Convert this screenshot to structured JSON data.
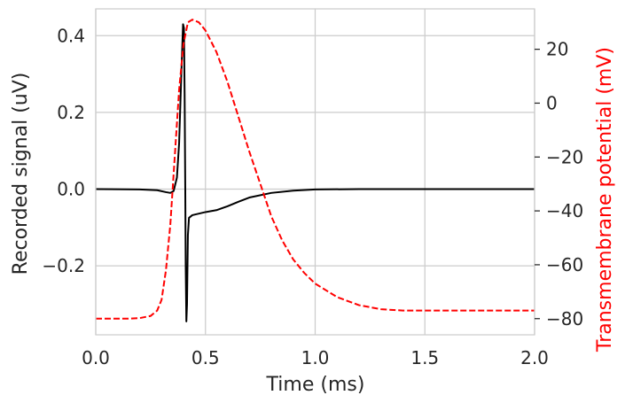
{
  "chart_data": {
    "type": "line",
    "xlabel": "Time (ms)",
    "ylabel_left": "Recorded signal (uV)",
    "ylabel_right": "Transmembrane potential (mV)",
    "xlim": [
      0.0,
      2.0
    ],
    "ylim_left": [
      -0.38,
      0.47
    ],
    "ylim_right": [
      -86,
      35
    ],
    "grid": true,
    "x_ticks": [
      "0.0",
      "0.5",
      "1.0",
      "1.5",
      "2.0"
    ],
    "left_ticks": [
      "−0.2",
      "0.0",
      "0.2",
      "0.4"
    ],
    "right_ticks": [
      "−80",
      "−60",
      "−40",
      "−20",
      "0",
      "20"
    ],
    "series": [
      {
        "axis": "left",
        "color": "#000000",
        "style": "solid",
        "points": [
          [
            0.0,
            0.0
          ],
          [
            0.2,
            -0.001
          ],
          [
            0.28,
            -0.003
          ],
          [
            0.32,
            -0.008
          ],
          [
            0.34,
            -0.01
          ],
          [
            0.355,
            -0.005
          ],
          [
            0.37,
            0.03
          ],
          [
            0.38,
            0.12
          ],
          [
            0.39,
            0.3
          ],
          [
            0.398,
            0.43
          ],
          [
            0.402,
            0.42
          ],
          [
            0.405,
            0.25
          ],
          [
            0.408,
            0.0
          ],
          [
            0.41,
            -0.2
          ],
          [
            0.413,
            -0.345
          ],
          [
            0.416,
            -0.3
          ],
          [
            0.42,
            -0.12
          ],
          [
            0.425,
            -0.075
          ],
          [
            0.44,
            -0.068
          ],
          [
            0.5,
            -0.06
          ],
          [
            0.55,
            -0.055
          ],
          [
            0.6,
            -0.045
          ],
          [
            0.65,
            -0.033
          ],
          [
            0.7,
            -0.022
          ],
          [
            0.8,
            -0.01
          ],
          [
            0.9,
            -0.004
          ],
          [
            1.0,
            -0.001
          ],
          [
            1.2,
            0.0
          ],
          [
            1.5,
            0.0
          ],
          [
            2.0,
            0.0
          ]
        ]
      },
      {
        "axis": "right",
        "color": "#ff0000",
        "style": "dashed",
        "points": [
          [
            0.0,
            -80
          ],
          [
            0.15,
            -80
          ],
          [
            0.2,
            -79.8
          ],
          [
            0.25,
            -79
          ],
          [
            0.28,
            -77
          ],
          [
            0.3,
            -73
          ],
          [
            0.32,
            -62
          ],
          [
            0.34,
            -45
          ],
          [
            0.36,
            -20
          ],
          [
            0.38,
            5
          ],
          [
            0.4,
            22
          ],
          [
            0.42,
            30
          ],
          [
            0.44,
            31
          ],
          [
            0.47,
            30
          ],
          [
            0.5,
            27
          ],
          [
            0.55,
            19
          ],
          [
            0.6,
            8
          ],
          [
            0.65,
            -5
          ],
          [
            0.7,
            -18
          ],
          [
            0.75,
            -30
          ],
          [
            0.8,
            -42
          ],
          [
            0.85,
            -51
          ],
          [
            0.9,
            -58
          ],
          [
            0.95,
            -63
          ],
          [
            1.0,
            -67
          ],
          [
            1.1,
            -72
          ],
          [
            1.2,
            -75
          ],
          [
            1.3,
            -76.5
          ],
          [
            1.4,
            -77
          ],
          [
            1.5,
            -77
          ],
          [
            1.7,
            -77
          ],
          [
            2.0,
            -77
          ]
        ]
      }
    ]
  }
}
